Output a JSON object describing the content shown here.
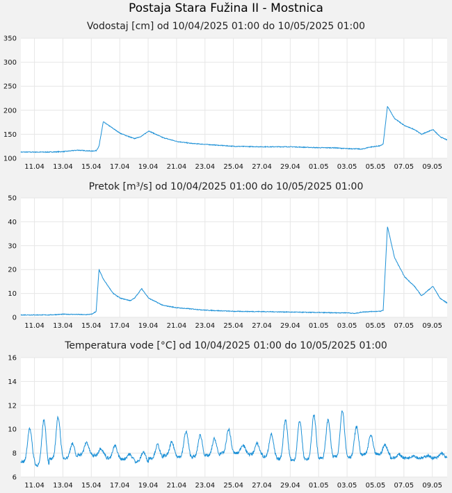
{
  "page": {
    "title": "Postaja Stara Fužina II - Mostnica"
  },
  "x_tick_labels": [
    "11.04",
    "13.04",
    "15.04",
    "17.04",
    "19.04",
    "21.04",
    "23.04",
    "25.04",
    "27.04",
    "29.04",
    "01.05",
    "03.05",
    "05.05",
    "07.05",
    "09.05"
  ],
  "colors": {
    "line": "#1a8fd6",
    "plot_bg": "#ffffff",
    "page_bg": "#f2f2f2",
    "grid": "#e6e6e6"
  },
  "chart_data": [
    {
      "type": "line",
      "title": "Vodostaj [cm] od 10/04/2025 01:00 do 10/05/2025 01:00",
      "xlabel": "",
      "ylabel": "",
      "x_range_days": [
        "10.04 01:00",
        "10.05 01:00"
      ],
      "ylim": [
        100,
        350
      ],
      "yticks": [
        100,
        150,
        200,
        250,
        300,
        350
      ],
      "grid": true,
      "x_day_index": [
        0,
        2,
        3,
        4,
        5,
        5.3,
        5.5,
        5.8,
        6.5,
        7,
        7.7,
        8,
        8.5,
        9,
        10,
        11,
        12,
        13,
        15,
        17,
        19,
        21,
        22,
        23,
        23.5,
        24,
        24.5,
        25,
        25.3,
        25.5,
        25.8,
        26.3,
        27,
        27.7,
        28.2,
        29,
        29.5,
        30
      ],
      "y": [
        113,
        113,
        114,
        117,
        115,
        116,
        125,
        176,
        162,
        152,
        144,
        141,
        146,
        157,
        143,
        135,
        131,
        129,
        125,
        124,
        124,
        122,
        122,
        120,
        120,
        119,
        123,
        125,
        126,
        130,
        208,
        183,
        168,
        160,
        150,
        160,
        145,
        138
      ]
    },
    {
      "type": "line",
      "title": "Pretok [m³/s] od 10/04/2025 01:00 do 10/05/2025 01:00",
      "xlabel": "",
      "ylabel": "",
      "x_range_days": [
        "10.04 01:00",
        "10.05 01:00"
      ],
      "ylim": [
        0,
        50
      ],
      "yticks": [
        0,
        10,
        20,
        30,
        40,
        50
      ],
      "grid": true,
      "x_day_index": [
        0,
        2,
        3,
        4,
        4.5,
        5,
        5.3,
        5.5,
        5.8,
        6.5,
        7,
        7.7,
        8,
        8.5,
        9,
        10,
        11,
        12,
        13,
        15,
        17,
        19,
        21,
        22,
        23,
        23.5,
        24,
        24.5,
        25,
        25.3,
        25.5,
        25.8,
        26.3,
        27,
        27.7,
        28.2,
        29,
        29.5,
        30
      ],
      "y": [
        1,
        1,
        1.3,
        1.2,
        1.1,
        1.3,
        2.5,
        20,
        16,
        10,
        8,
        7,
        8,
        12,
        8,
        5,
        4,
        3.5,
        3,
        2.5,
        2.4,
        2.2,
        2,
        1.9,
        1.9,
        1.6,
        2.2,
        2.4,
        2.5,
        2.5,
        3,
        38,
        25,
        17,
        13,
        9,
        13,
        8,
        6
      ]
    },
    {
      "type": "line",
      "title": "Temperatura vode [°C] od 10/04/2025 01:00 do 10/05/2025 01:00",
      "xlabel": "",
      "ylabel": "",
      "x_range_days": [
        "10.04 01:00",
        "10.05 01:00"
      ],
      "ylim": [
        6,
        16
      ],
      "yticks": [
        6,
        8,
        10,
        12,
        14,
        16
      ],
      "grid": true,
      "daily_min": [
        7.3,
        7.0,
        7.5,
        7.6,
        7.9,
        7.8,
        7.6,
        7.5,
        7.3,
        7.6,
        7.8,
        7.7,
        7.7,
        7.8,
        8.0,
        8.0,
        7.9,
        7.7,
        7.5,
        7.4,
        7.5,
        7.6,
        7.7,
        7.7,
        7.9,
        7.9,
        7.6,
        7.6,
        7.6,
        7.6
      ],
      "daily_max": [
        10.1,
        10.8,
        11.0,
        8.8,
        8.9,
        8.4,
        8.6,
        7.9,
        8.1,
        8.7,
        8.9,
        9.8,
        9.5,
        9.2,
        10.0,
        8.7,
        8.8,
        9.6,
        10.8,
        10.7,
        11.2,
        10.8,
        11.6,
        10.2,
        9.5,
        8.7,
        7.9,
        7.8,
        7.8,
        8.0
      ],
      "daily_peak_hour": [
        15,
        15,
        15,
        15,
        15,
        15,
        15,
        15,
        15,
        15,
        15,
        15,
        15,
        15,
        15,
        15,
        15,
        15,
        15,
        15,
        15,
        15,
        15,
        15,
        15,
        15,
        15,
        15,
        15,
        15
      ]
    }
  ]
}
